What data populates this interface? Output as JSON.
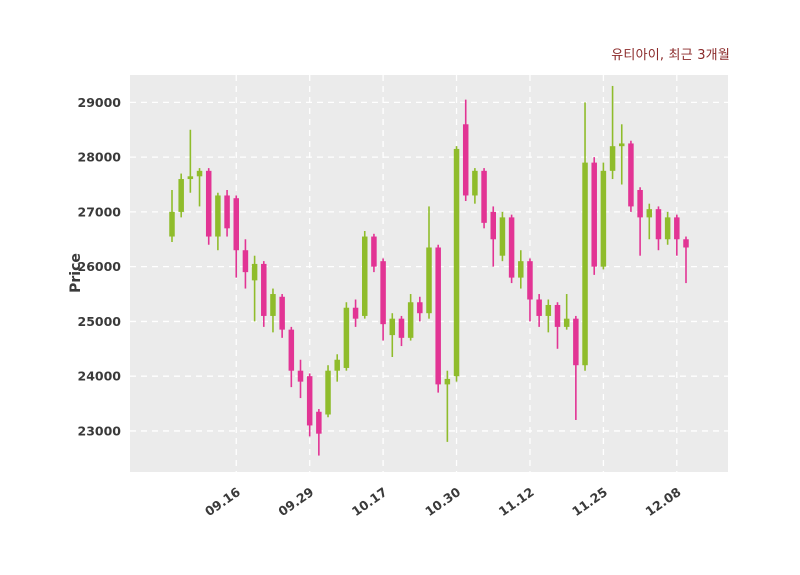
{
  "header": {
    "title": "유티아이, 최근 3개월"
  },
  "axes": {
    "ylabel": "Price"
  },
  "chart_data": {
    "type": "candlestick",
    "title": "유티아이, 최근 3개월",
    "series_name": "유티아이",
    "period_label": "최근 3개월",
    "ylabel": "Price",
    "xlabel": "",
    "grid": true,
    "legend": false,
    "y_ticks": [
      23000,
      24000,
      25000,
      26000,
      27000,
      28000,
      29000
    ],
    "ylim": [
      22250,
      29500
    ],
    "x_tick_labels": [
      {
        "index": 7,
        "label": "09.16"
      },
      {
        "index": 15,
        "label": "09.29"
      },
      {
        "index": 23,
        "label": "10.17"
      },
      {
        "index": 31,
        "label": "10.30"
      },
      {
        "index": 39,
        "label": "11.12"
      },
      {
        "index": 47,
        "label": "11.25"
      },
      {
        "index": 55,
        "label": "12.08"
      }
    ],
    "colors": {
      "up": "#8fbc2b",
      "down": "#e23494",
      "plot_bg": "#ebebeb",
      "grid": "#ffffff",
      "tick_text": "#3a3a3a",
      "title_text": "#8b2a2a"
    },
    "ohlc_order": [
      "open",
      "high",
      "low",
      "close"
    ],
    "candles": [
      [
        26550,
        27400,
        26450,
        27000
      ],
      [
        27000,
        27700,
        26900,
        27600
      ],
      [
        27600,
        28500,
        27350,
        27650
      ],
      [
        27650,
        27800,
        27100,
        27750
      ],
      [
        27750,
        27800,
        26400,
        26550
      ],
      [
        26550,
        27350,
        26300,
        27300
      ],
      [
        27300,
        27400,
        26550,
        26700
      ],
      [
        27250,
        27300,
        25800,
        26300
      ],
      [
        26300,
        26500,
        25600,
        25900
      ],
      [
        25750,
        26200,
        25000,
        26050
      ],
      [
        26050,
        26100,
        24900,
        25100
      ],
      [
        25100,
        25600,
        24800,
        25500
      ],
      [
        25450,
        25500,
        24700,
        24850
      ],
      [
        24850,
        24900,
        23800,
        24100
      ],
      [
        24100,
        24300,
        23600,
        23900
      ],
      [
        24000,
        24050,
        22900,
        23100
      ],
      [
        23350,
        23400,
        22550,
        22950
      ],
      [
        23300,
        24200,
        23250,
        24100
      ],
      [
        24100,
        24400,
        23900,
        24300
      ],
      [
        24150,
        25350,
        24100,
        25250
      ],
      [
        25250,
        25400,
        24900,
        25050
      ],
      [
        25100,
        26650,
        25050,
        26550
      ],
      [
        26550,
        26600,
        25900,
        26000
      ],
      [
        26100,
        26150,
        24650,
        24950
      ],
      [
        24750,
        25150,
        24350,
        25050
      ],
      [
        25050,
        25100,
        24550,
        24700
      ],
      [
        24700,
        25500,
        24650,
        25350
      ],
      [
        25350,
        25450,
        25000,
        25150
      ],
      [
        25150,
        27100,
        25050,
        26350
      ],
      [
        26350,
        26400,
        23700,
        23850
      ],
      [
        23850,
        24100,
        22800,
        23950
      ],
      [
        24000,
        28200,
        23900,
        28150
      ],
      [
        28600,
        29050,
        27200,
        27300
      ],
      [
        27300,
        27800,
        27150,
        27750
      ],
      [
        27750,
        27800,
        26700,
        26800
      ],
      [
        27000,
        27100,
        26000,
        26500
      ],
      [
        26200,
        27000,
        26100,
        26900
      ],
      [
        26900,
        26950,
        25700,
        25800
      ],
      [
        25800,
        26300,
        25600,
        26100
      ],
      [
        26100,
        26150,
        25000,
        25400
      ],
      [
        25400,
        25500,
        24900,
        25100
      ],
      [
        25100,
        25400,
        24800,
        25300
      ],
      [
        25300,
        25350,
        24500,
        24900
      ],
      [
        24900,
        25500,
        24850,
        25050
      ],
      [
        25050,
        25100,
        23200,
        24200
      ],
      [
        24200,
        29000,
        24100,
        27900
      ],
      [
        27900,
        28000,
        25850,
        26000
      ],
      [
        26000,
        27900,
        25950,
        27750
      ],
      [
        27750,
        29300,
        27600,
        28200
      ],
      [
        28200,
        28600,
        27500,
        28250
      ],
      [
        28250,
        28300,
        27000,
        27100
      ],
      [
        27400,
        27450,
        26200,
        26900
      ],
      [
        26900,
        27150,
        26500,
        27050
      ],
      [
        27050,
        27100,
        26300,
        26500
      ],
      [
        26500,
        27000,
        26400,
        26900
      ],
      [
        26900,
        26950,
        26200,
        26500
      ],
      [
        26500,
        26550,
        25700,
        26350
      ]
    ]
  }
}
